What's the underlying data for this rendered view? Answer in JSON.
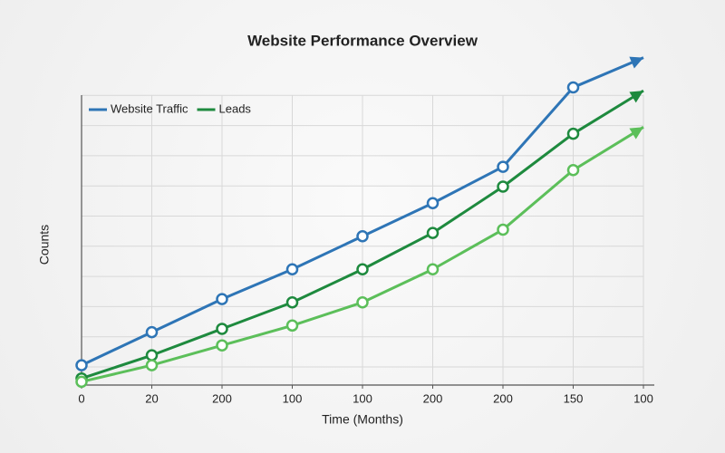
{
  "chart_data": {
    "type": "line",
    "title": "Website Performance Overview",
    "x_label": "Time (Months)",
    "y_label": "Counts",
    "categories": [
      "0",
      "20",
      "200",
      "100",
      "100",
      "200",
      "200",
      "150",
      "100"
    ],
    "series": [
      {
        "name": "Website Traffic",
        "color": "#2e75b6",
        "values": [
          6,
          16,
          26,
          35,
          45,
          55,
          66,
          90,
          99
        ]
      },
      {
        "name": "Leads",
        "color": "#1e8a3e",
        "values": [
          2,
          9,
          17,
          25,
          35,
          46,
          60,
          76,
          89
        ]
      },
      {
        "color": "#5cbf5a",
        "values": [
          1,
          6,
          12,
          18,
          25,
          35,
          47,
          65,
          78
        ]
      }
    ],
    "ylim": [
      0,
      100
    ],
    "grid": true,
    "legend": "upper left"
  }
}
